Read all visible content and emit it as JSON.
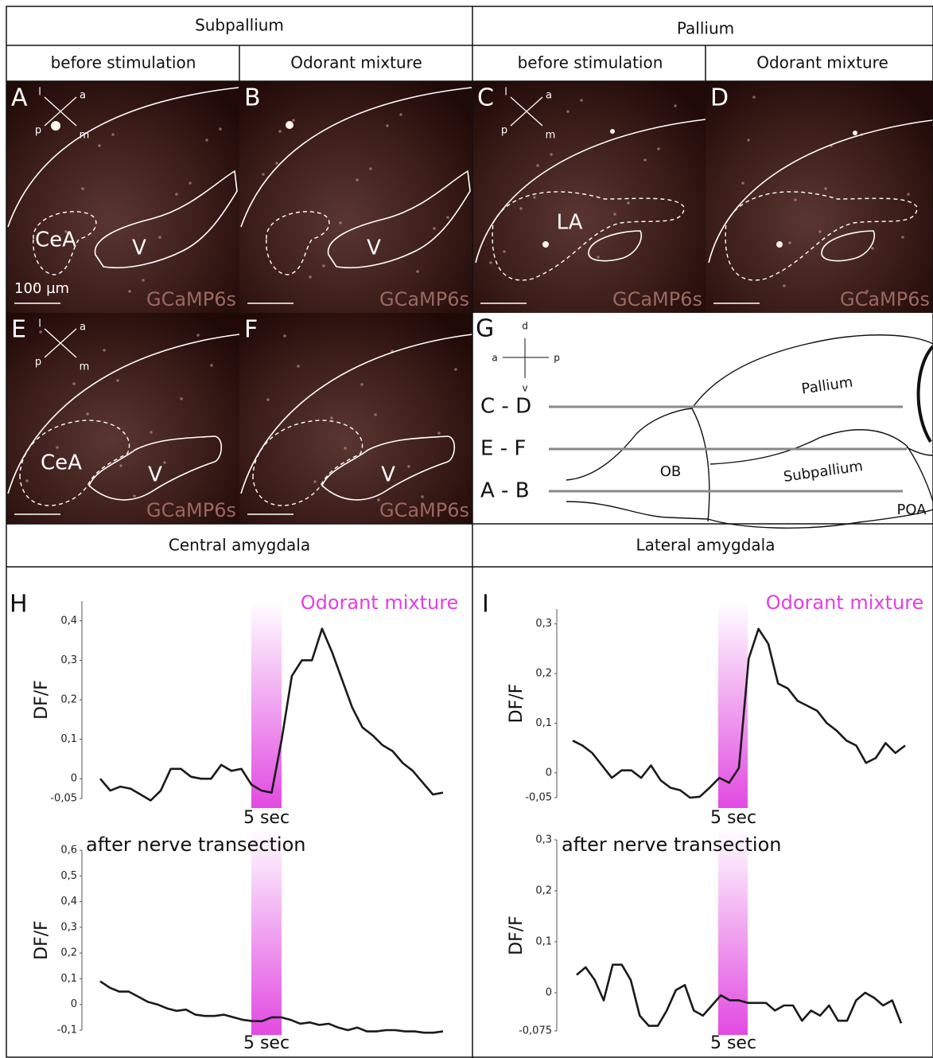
{
  "header": {
    "left": "Subpallium",
    "right": "Pallium"
  },
  "columns": [
    "before stimulation",
    "Odorant mixture",
    "before stimulation",
    "Odorant mixture"
  ],
  "panels": [
    {
      "letter": "A",
      "orientation": [
        "l",
        "a",
        "p",
        "m"
      ],
      "regions": [
        "CeA",
        "V"
      ],
      "scale_bar": "100 µm",
      "marker": "GCaMP6s"
    },
    {
      "letter": "B",
      "regions": [
        "V"
      ],
      "marker": "GCaMP6s"
    },
    {
      "letter": "C",
      "orientation": [
        "l",
        "a",
        "p",
        "m"
      ],
      "regions": [
        "LA"
      ],
      "marker": "GCaMP6s"
    },
    {
      "letter": "D",
      "marker": "GCaMP6s"
    },
    {
      "letter": "E",
      "orientation": [
        "l",
        "a",
        "p",
        "m"
      ],
      "regions": [
        "CeA",
        "V"
      ],
      "marker": "GCaMP6s"
    },
    {
      "letter": "F",
      "regions": [
        "V"
      ],
      "marker": "GCaMP6s"
    }
  ],
  "diagram": {
    "letter": "G",
    "orientation": [
      "d",
      "a",
      "p",
      "v"
    ],
    "regions": [
      "Pallium",
      "OB",
      "Subpallium",
      "POA"
    ],
    "sections": [
      "C - D",
      "E - F",
      "A - B"
    ]
  },
  "sections": [
    "Central amygdala",
    "Lateral amygdala"
  ],
  "chart_data": [
    {
      "type": "line",
      "letter": "H",
      "annotation": "Odorant mixture",
      "scale_label": "5 sec",
      "ylabel": "DF/F",
      "color": "#1a1a1a",
      "categories": [
        null,
        null,
        null,
        null,
        null,
        null,
        null,
        null,
        null,
        null,
        null,
        null,
        null,
        null,
        null,
        null,
        null,
        null,
        null,
        null,
        null,
        null,
        null,
        null,
        null,
        null,
        null,
        null,
        null,
        null,
        null,
        null,
        null,
        null,
        null
      ],
      "values": [
        0,
        -0.03,
        -0.02,
        -0.025,
        -0.04,
        -0.055,
        -0.03,
        0.025,
        0.025,
        0.005,
        0,
        0,
        0.035,
        0.02,
        0.025,
        -0.015,
        -0.03,
        -0.035,
        0.1,
        0.26,
        0.3,
        0.3,
        0.38,
        0.32,
        0.25,
        0.18,
        0.13,
        0.11,
        0.085,
        0.07,
        0.04,
        0.02,
        -0.01,
        -0.04,
        -0.035
      ],
      "ylim": [
        -0.05,
        0.45
      ],
      "yticks": [
        {
          "value": 0.4,
          "label": "0,4"
        },
        {
          "value": 0.3,
          "label": "0,3"
        },
        {
          "value": 0.2,
          "label": "0,2"
        },
        {
          "value": 0.1,
          "label": "0,1"
        },
        0,
        {
          "value": -0.05,
          "label": "-0,05"
        }
      ]
    },
    {
      "type": "line",
      "subtitle": "after nerve transection",
      "scale_label": "5 sec",
      "ylabel": "DF/F",
      "color": "#1a1a1a",
      "categories": [
        null,
        null,
        null,
        null,
        null,
        null,
        null,
        null,
        null,
        null,
        null,
        null,
        null,
        null,
        null,
        null,
        null,
        null,
        null,
        null,
        null,
        null,
        null,
        null,
        null,
        null,
        null,
        null,
        null,
        null,
        null,
        null,
        null,
        null,
        null,
        null,
        null
      ],
      "values": [
        0.09,
        0.065,
        0.05,
        0.05,
        0.03,
        0.01,
        0,
        -0.015,
        -0.025,
        -0.02,
        -0.04,
        -0.045,
        -0.045,
        -0.04,
        -0.05,
        -0.06,
        -0.065,
        -0.065,
        -0.05,
        -0.05,
        -0.06,
        -0.075,
        -0.07,
        -0.08,
        -0.075,
        -0.09,
        -0.1,
        -0.09,
        -0.105,
        -0.105,
        -0.1,
        -0.1,
        -0.105,
        -0.105,
        -0.11,
        -0.11,
        -0.105
      ],
      "ylim": [
        -0.1,
        0.6
      ],
      "yticks": [
        {
          "value": 0.6,
          "label": "0,6"
        },
        {
          "value": 0.5,
          "label": "0,5"
        },
        {
          "value": 0.4,
          "label": "0,4"
        },
        {
          "value": 0.3,
          "label": "0,3"
        },
        {
          "value": 0.2,
          "label": "0,2"
        },
        {
          "value": 0.1,
          "label": "0,1"
        },
        0,
        {
          "value": -0.1,
          "label": "-0,1"
        }
      ]
    },
    {
      "type": "line",
      "letter": "I",
      "annotation": "Odorant mixture",
      "scale_label": "5 sec",
      "ylabel": "DF/F",
      "color": "#1a1a1a",
      "categories": [
        null,
        null,
        null,
        null,
        null,
        null,
        null,
        null,
        null,
        null,
        null,
        null,
        null,
        null,
        null,
        null,
        null,
        null,
        null,
        null,
        null,
        null,
        null,
        null,
        null,
        null,
        null,
        null,
        null,
        null,
        null,
        null,
        null,
        null,
        null
      ],
      "values": [
        0.065,
        0.055,
        0.04,
        0.015,
        -0.01,
        0.005,
        0.005,
        -0.01,
        0.015,
        -0.015,
        -0.03,
        -0.035,
        -0.05,
        -0.048,
        -0.03,
        -0.01,
        -0.02,
        0.01,
        0.23,
        0.29,
        0.26,
        0.18,
        0.17,
        0.145,
        0.135,
        0.125,
        0.1,
        0.085,
        0.065,
        0.055,
        0.02,
        0.03,
        0.06,
        0.04,
        0.055
      ],
      "ylim": [
        -0.05,
        0.33
      ],
      "yticks": [
        {
          "value": 0.3,
          "label": "0,3"
        },
        {
          "value": 0.2,
          "label": "0,2"
        },
        {
          "value": 0.1,
          "label": "0,1"
        },
        0,
        {
          "value": -0.05,
          "label": "-0,05"
        }
      ]
    },
    {
      "type": "line",
      "subtitle": "after nerve transection",
      "scale_label": "5 sec",
      "ylabel": "DF/F",
      "color": "#1a1a1a",
      "categories": [
        null,
        null,
        null,
        null,
        null,
        null,
        null,
        null,
        null,
        null,
        null,
        null,
        null,
        null,
        null,
        null,
        null,
        null,
        null,
        null,
        null,
        null,
        null,
        null,
        null,
        null,
        null,
        null,
        null,
        null,
        null,
        null,
        null,
        null,
        null,
        null,
        null
      ],
      "values": [
        0.035,
        0.05,
        0.025,
        -0.015,
        0.055,
        0.055,
        0.025,
        -0.045,
        -0.065,
        -0.065,
        -0.035,
        0.005,
        0.015,
        -0.035,
        -0.045,
        -0.025,
        -0.005,
        -0.015,
        -0.015,
        -0.02,
        -0.02,
        -0.02,
        -0.035,
        -0.025,
        -0.025,
        -0.055,
        -0.035,
        -0.045,
        -0.025,
        -0.055,
        -0.055,
        -0.015,
        0,
        -0.01,
        -0.025,
        -0.015,
        -0.06
      ],
      "ylim": [
        -0.075,
        0.3
      ],
      "yticks": [
        {
          "value": 0.3,
          "label": "0,3"
        },
        {
          "value": 0.2,
          "label": "0,2"
        },
        {
          "value": 0.1,
          "label": "0,1"
        },
        0,
        {
          "value": -0.075,
          "label": "-0,075"
        }
      ]
    }
  ]
}
